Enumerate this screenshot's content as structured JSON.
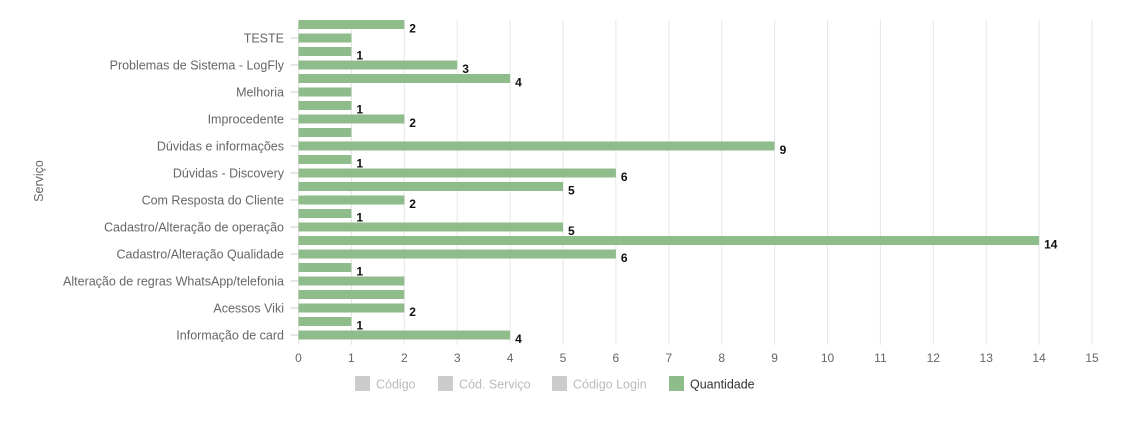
{
  "colors": {
    "bar": "#8fbc8b",
    "grid": "#e6e6e6",
    "legend_inactive_swatch": "#cccccc",
    "legend_inactive_text": "#bbbbbb",
    "legend_active_text": "#333333",
    "label_text": "#666666"
  },
  "chart_data": {
    "type": "bar",
    "orientation": "horizontal",
    "title": "",
    "xlabel": "",
    "ylabel": "Serviço",
    "xlim": [
      0,
      15
    ],
    "x_ticks": [
      0,
      1,
      2,
      3,
      4,
      5,
      6,
      7,
      8,
      9,
      10,
      11,
      12,
      13,
      14,
      15
    ],
    "grid": true,
    "legend_position": "bottom",
    "legend": [
      {
        "name": "Código",
        "active": false
      },
      {
        "name": "Cód. Serviço",
        "active": false
      },
      {
        "name": "Código Login",
        "active": false
      },
      {
        "name": "Quantidade",
        "active": true
      }
    ],
    "category_labels": [
      "TESTE",
      "Problemas de Sistema - LogFly",
      "Melhoria",
      "Improcedente",
      "Dúvidas e informações",
      "Dúvidas - Discovery",
      "Com Resposta do Cliente",
      "Cadastro/Alteração de operação",
      "Cadastro/Alteração Qualidade",
      "Alteração de regras WhatsApp/telefonia",
      "Acessos Viki",
      "Informação de card"
    ],
    "series": [
      {
        "name": "Quantidade",
        "values": [
          2,
          1,
          1,
          3,
          4,
          1,
          1,
          2,
          1,
          9,
          1,
          6,
          5,
          2,
          1,
          5,
          14,
          6,
          1,
          2,
          2,
          2,
          1,
          4
        ],
        "labels": [
          "2",
          "",
          "1",
          "3",
          "4",
          "",
          "1",
          "2",
          "",
          "9",
          "1",
          "6",
          "5",
          "2",
          "1",
          "5",
          "14",
          "6",
          "1",
          "",
          "",
          "2",
          "1",
          "4"
        ]
      }
    ]
  }
}
